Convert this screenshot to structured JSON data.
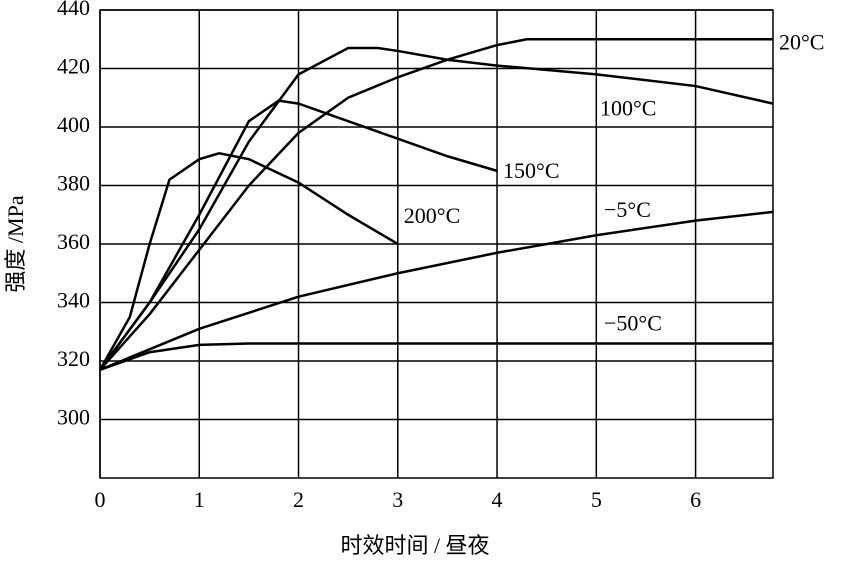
{
  "chart_data": {
    "type": "line",
    "xlabel": "时效时间 / 昼夜",
    "ylabel": "强度 /MPa",
    "xlim": [
      0,
      6.78
    ],
    "ylim": [
      280,
      440
    ],
    "xticks": [
      0,
      1,
      2,
      3,
      4,
      5,
      6
    ],
    "yticks": [
      300,
      320,
      340,
      360,
      380,
      400,
      420,
      440
    ],
    "grid": true,
    "series": [
      {
        "name": "20°C",
        "color": "#000000",
        "x": [
          0,
          0.5,
          1,
          1.5,
          2,
          2.5,
          3,
          3.5,
          4,
          4.3,
          5,
          6,
          6.78
        ],
        "values": [
          317,
          336,
          358,
          380,
          398,
          410,
          417,
          423,
          428,
          430,
          430,
          430,
          430
        ]
      },
      {
        "name": "100°C",
        "color": "#000000",
        "x": [
          0,
          0.5,
          1,
          1.5,
          2,
          2.5,
          2.8,
          3,
          3.5,
          4,
          5,
          6,
          6.78
        ],
        "values": [
          317,
          340,
          365,
          395,
          418,
          427,
          427,
          426,
          423,
          421,
          418,
          414,
          408
        ]
      },
      {
        "name": "150°C",
        "color": "#000000",
        "x": [
          0,
          0.5,
          1,
          1.5,
          1.8,
          2,
          2.5,
          3,
          3.5,
          4
        ],
        "values": [
          317,
          340,
          370,
          402,
          409,
          408,
          402,
          396,
          390,
          385
        ]
      },
      {
        "name": "200°C",
        "color": "#000000",
        "x": [
          0,
          0.3,
          0.5,
          0.7,
          1,
          1.2,
          1.5,
          2,
          2.5,
          3
        ],
        "values": [
          317,
          335,
          360,
          382,
          389,
          391,
          389,
          381,
          370,
          360
        ]
      },
      {
        "name": "−5°C",
        "color": "#000000",
        "x": [
          0,
          1,
          2,
          3,
          4,
          5,
          6,
          6.78
        ],
        "values": [
          317,
          331,
          342,
          350,
          357,
          363,
          368,
          371
        ]
      },
      {
        "name": "−50°C",
        "color": "#000000",
        "x": [
          0,
          0.5,
          1,
          1.5,
          6.78
        ],
        "values": [
          317,
          323,
          325.5,
          326,
          326
        ]
      }
    ]
  }
}
